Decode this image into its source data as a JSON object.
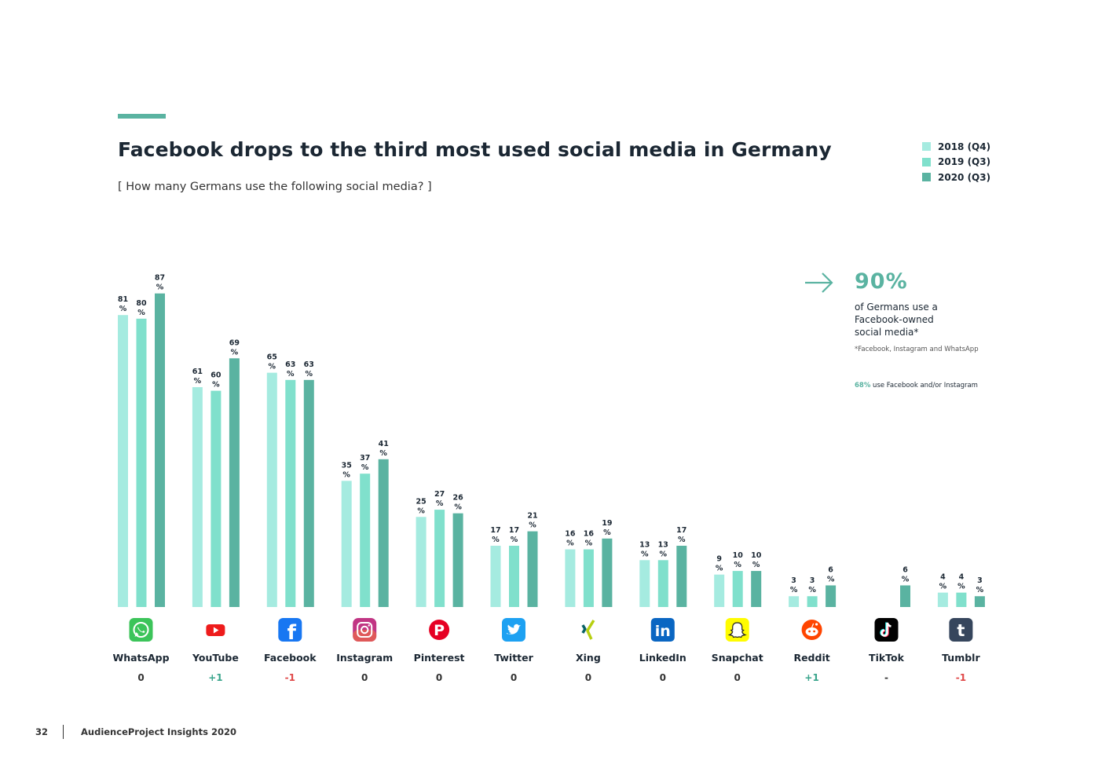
{
  "header": {
    "title": "Facebook drops to the third most used social media in Germany",
    "subtitle": "[ How many Germans use the following social media? ]"
  },
  "callout": {
    "big_value": "90%",
    "text_lines": [
      "of Germans use a",
      "Facebook-owned",
      "social media*"
    ],
    "footnote": "*Facebook, Instagram and WhatsApp",
    "stat_pct": "68%",
    "stat_text": " use Facebook and/or Instagram"
  },
  "footer": {
    "page_number": "32",
    "publication": "AudienceProject Insights 2020"
  },
  "colors": {
    "series_2018": "#a5ebe0",
    "series_2019": "#80e0cc",
    "series_2020": "#5ab3a1",
    "positive": "#3aa58c",
    "negative": "#e04848",
    "neutral": "#333333"
  },
  "chart_data": {
    "type": "bar",
    "categories": [
      "WhatsApp",
      "YouTube",
      "Facebook",
      "Instagram",
      "Pinterest",
      "Twitter",
      "Xing",
      "LinkedIn",
      "Snapchat",
      "Reddit",
      "TikTok",
      "Tumblr"
    ],
    "series": [
      {
        "name": "2018 (Q4)",
        "values": [
          81,
          61,
          65,
          35,
          25,
          17,
          16,
          13,
          9,
          3,
          null,
          4
        ]
      },
      {
        "name": "2019 (Q3)",
        "values": [
          80,
          60,
          63,
          37,
          27,
          17,
          16,
          13,
          10,
          3,
          null,
          4
        ]
      },
      {
        "name": "2020 (Q3)",
        "values": [
          87,
          69,
          63,
          41,
          26,
          21,
          19,
          17,
          10,
          6,
          6,
          3
        ]
      }
    ],
    "rank_change": [
      "0",
      "+1",
      "-1",
      "0",
      "0",
      "0",
      "0",
      "0",
      "0",
      "+1",
      "-",
      "-1"
    ],
    "icons": [
      "whatsapp-icon",
      "youtube-icon",
      "facebook-icon",
      "instagram-icon",
      "pinterest-icon",
      "twitter-icon",
      "xing-icon",
      "linkedin-icon",
      "snapchat-icon",
      "reddit-icon",
      "tiktok-icon",
      "tumblr-icon"
    ],
    "value_unit": "%",
    "ylim": [
      0,
      100
    ],
    "legend_position": "top-right",
    "grid": false
  }
}
